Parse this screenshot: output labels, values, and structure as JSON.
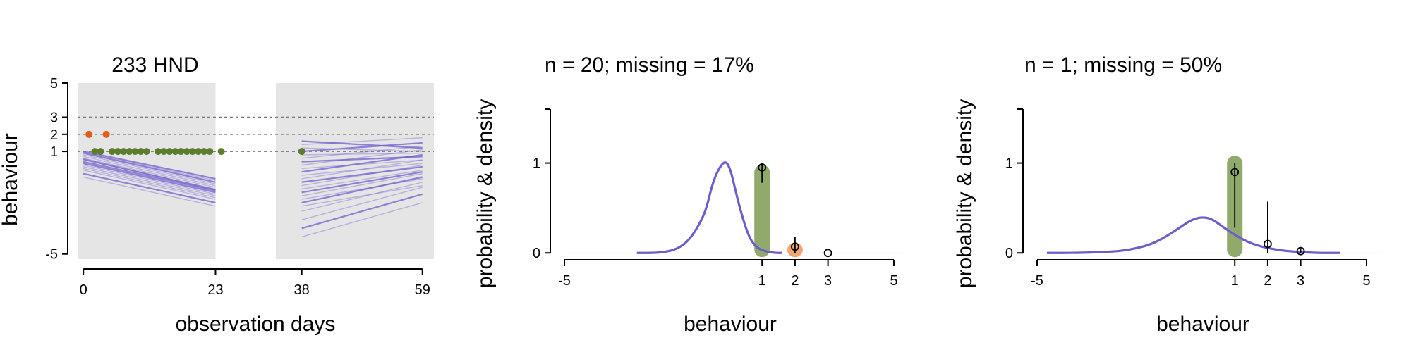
{
  "colors": {
    "background_shade": "#e5e5e5",
    "model_line": "#6f5ccc",
    "observed_normal": "#5b7d2d",
    "observed_high": "#e0601a",
    "bar_green": "#8faa6b",
    "bar_orange": "#f0a572",
    "dashed": "#777777"
  },
  "chart_data": [
    {
      "type": "line",
      "title": "233 HND",
      "xlabel": "observation days",
      "ylabel": "behaviour",
      "xlim": [
        -1,
        61
      ],
      "ylim": [
        -5.3,
        5
      ],
      "xticks": [
        0,
        23,
        38,
        59
      ],
      "yticks": [
        -5,
        1,
        2,
        3,
        5
      ],
      "grid": false,
      "reference_lines_y": [
        1,
        2,
        3
      ],
      "shaded_periods": [
        [
          -1,
          23
        ],
        [
          33.5,
          61
        ]
      ],
      "series": [
        {
          "kind": "predicted_trajectories_period_1",
          "x_range": [
            0,
            23
          ],
          "start_values": [
            0.9,
            0.7,
            0.5,
            0.3,
            0.1,
            -0.1,
            -0.3,
            0.8,
            0.6,
            0.4,
            0.2,
            0.0,
            1.0,
            -0.5,
            0.95,
            0.55
          ],
          "end_values": [
            -0.8,
            -1.0,
            -1.2,
            -1.4,
            -1.6,
            -1.8,
            -2.0,
            -0.9,
            -1.1,
            -1.3,
            -1.5,
            -1.7,
            -0.6,
            -2.2,
            -0.7,
            -1.25
          ]
        },
        {
          "kind": "predicted_trajectories_period_2",
          "x_range": [
            38,
            59
          ],
          "start_values": [
            1.6,
            1.2,
            0.8,
            0.4,
            0.0,
            -0.4,
            -0.8,
            -1.2,
            -1.6,
            -2.0,
            -2.5,
            -3.0,
            -3.5,
            -4.0,
            1.4,
            1.0,
            0.6,
            0.2,
            -0.2,
            -0.6,
            -1.0,
            -1.4,
            -1.8,
            -2.2
          ],
          "end_values": [
            1.2,
            1.0,
            0.9,
            0.7,
            0.5,
            0.3,
            0.1,
            -0.1,
            -0.3,
            -0.5,
            -0.8,
            -1.1,
            -1.5,
            -2.0,
            1.8,
            1.5,
            1.3,
            1.1,
            0.8,
            0.5,
            0.2,
            -0.2,
            -0.6,
            -1.0
          ]
        },
        {
          "kind": "observed_high",
          "x": [
            1,
            4
          ],
          "y": [
            2,
            2
          ]
        },
        {
          "kind": "observed_normal",
          "x": [
            2,
            3,
            5,
            6,
            7,
            8,
            9,
            10,
            11,
            13,
            14,
            15,
            16,
            17,
            18,
            19,
            20,
            21,
            22,
            24,
            38
          ],
          "y": [
            1,
            1,
            1,
            1,
            1,
            1,
            1,
            1,
            1,
            1,
            1,
            1,
            1,
            1,
            1,
            1,
            1,
            1,
            1,
            1,
            1
          ]
        }
      ]
    },
    {
      "type": "bar",
      "title": "n = 20; missing = 17%",
      "xlabel": "behaviour",
      "ylabel": "probability & density",
      "xlim": [
        -5,
        5
      ],
      "ylim": [
        -0.1,
        1.6
      ],
      "xticks": [
        -5,
        1,
        2,
        3,
        5
      ],
      "yticks": [
        0,
        1
      ],
      "density": {
        "x": [
          -2.8,
          -2.2,
          -1.8,
          -1.5,
          -1.2,
          -0.9,
          -0.7,
          -0.5,
          -0.3,
          -0.1,
          0.05,
          0.2,
          0.4,
          0.6,
          0.8,
          1.0,
          1.2,
          1.4,
          1.6
        ],
        "y": [
          0.0,
          0.0,
          0.02,
          0.06,
          0.15,
          0.32,
          0.48,
          0.78,
          0.95,
          1.03,
          0.92,
          0.68,
          0.4,
          0.18,
          0.07,
          0.03,
          0.01,
          0.0,
          0.0
        ]
      },
      "bars": [
        {
          "category": 1,
          "value": 0.95,
          "color": "green"
        },
        {
          "category": 2,
          "value": 0.08,
          "color": "orange"
        }
      ],
      "points": [
        {
          "x": 1,
          "y": 0.95,
          "low": 0.78,
          "high": 1.0
        },
        {
          "x": 2,
          "y": 0.07,
          "low": 0.0,
          "high": 0.18
        },
        {
          "x": 3,
          "y": 0.0,
          "low": 0.0,
          "high": 0.0
        }
      ]
    },
    {
      "type": "bar",
      "title": "n = 1; missing = 50%",
      "xlabel": "behaviour",
      "ylabel": "probability & density",
      "xlim": [
        -5,
        5
      ],
      "ylim": [
        -0.1,
        1.6
      ],
      "xticks": [
        -5,
        1,
        2,
        3,
        5
      ],
      "yticks": [
        0,
        1
      ],
      "density": {
        "x": [
          -4.7,
          -3.8,
          -3.0,
          -2.5,
          -2.0,
          -1.5,
          -1.0,
          -0.6,
          -0.3,
          0.0,
          0.3,
          0.6,
          1.0,
          1.4,
          1.8,
          2.2,
          2.6,
          3.0,
          3.5,
          4.2
        ],
        "y": [
          0.0,
          0.0,
          0.01,
          0.02,
          0.05,
          0.1,
          0.2,
          0.3,
          0.37,
          0.4,
          0.38,
          0.3,
          0.2,
          0.12,
          0.07,
          0.04,
          0.02,
          0.01,
          0.0,
          0.0
        ]
      },
      "bars": [
        {
          "category": 1,
          "value": 1.05,
          "color": "green"
        }
      ],
      "points": [
        {
          "x": 1,
          "y": 0.9,
          "low": 0.28,
          "high": 1.0
        },
        {
          "x": 2,
          "y": 0.1,
          "low": 0.0,
          "high": 0.57
        },
        {
          "x": 3,
          "y": 0.02,
          "low": 0.0,
          "high": 0.05
        }
      ]
    }
  ]
}
